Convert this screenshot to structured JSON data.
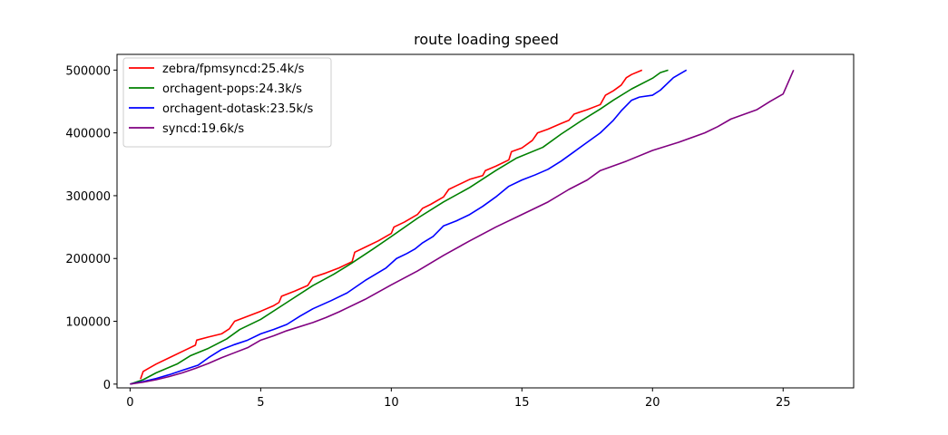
{
  "chart_data": {
    "type": "line",
    "title": "route loading speed",
    "xlabel": "",
    "ylabel": "",
    "xlim": [
      -0.5,
      27.7
    ],
    "ylim": [
      -6000,
      525000
    ],
    "xticks": [
      0,
      5,
      10,
      15,
      20,
      25
    ],
    "yticks": [
      0,
      100000,
      200000,
      300000,
      400000,
      500000
    ],
    "grid": false,
    "legend_position": "top-left",
    "series": [
      {
        "name": "zebra/fpmsyncd:25.4k/s",
        "color": "#ff0000",
        "x": [
          0.4,
          0.5,
          0.7,
          1.0,
          1.5,
          2.0,
          2.5,
          2.55,
          3.0,
          3.5,
          3.8,
          4.0,
          4.5,
          5.0,
          5.5,
          5.7,
          5.8,
          6.3,
          6.8,
          7.0,
          7.5,
          8.0,
          8.5,
          8.6,
          9.0,
          9.5,
          10.0,
          10.1,
          10.5,
          11.0,
          11.2,
          11.5,
          12.0,
          12.2,
          12.5,
          13.0,
          13.5,
          13.6,
          14.0,
          14.5,
          14.6,
          15.0,
          15.4,
          15.6,
          16.0,
          16.5,
          16.8,
          17.0,
          17.5,
          18.0,
          18.2,
          18.5,
          18.8,
          19.0,
          19.2,
          19.6
        ],
        "y": [
          8000,
          20000,
          25000,
          32000,
          42000,
          52000,
          62000,
          70000,
          75000,
          80000,
          88000,
          100000,
          108000,
          116000,
          125000,
          130000,
          140000,
          148000,
          157000,
          170000,
          177000,
          185000,
          195000,
          210000,
          218000,
          228000,
          240000,
          250000,
          258000,
          270000,
          280000,
          286000,
          298000,
          310000,
          316000,
          326000,
          332000,
          340000,
          347000,
          357000,
          370000,
          376000,
          388000,
          400000,
          406000,
          415000,
          420000,
          430000,
          437000,
          445000,
          460000,
          467000,
          476000,
          488000,
          493000,
          500000
        ]
      },
      {
        "name": "orchagent-pops:24.3k/s",
        "color": "#008000",
        "x": [
          0.0,
          0.5,
          1.0,
          1.8,
          2.3,
          3.0,
          3.7,
          4.2,
          5.0,
          6.0,
          7.0,
          7.8,
          8.5,
          9.3,
          10.0,
          11.0,
          12.0,
          13.0,
          14.0,
          14.8,
          15.8,
          16.5,
          17.3,
          18.0,
          18.5,
          19.2,
          20.0,
          20.3,
          20.6
        ],
        "y": [
          0,
          7000,
          18000,
          32000,
          45000,
          57000,
          72000,
          87000,
          103000,
          130000,
          157000,
          175000,
          193000,
          215000,
          235000,
          264000,
          290000,
          313000,
          340000,
          360000,
          377000,
          398000,
          420000,
          438000,
          452000,
          470000,
          487000,
          496000,
          500000
        ]
      },
      {
        "name": "orchagent-dotask:23.5k/s",
        "color": "#0000ff",
        "x": [
          0.0,
          0.5,
          1.0,
          1.5,
          2.0,
          2.6,
          3.0,
          3.5,
          4.0,
          4.5,
          5.0,
          5.5,
          6.0,
          6.5,
          7.0,
          7.7,
          8.3,
          9.0,
          9.8,
          10.2,
          10.6,
          10.9,
          11.2,
          11.6,
          12.0,
          12.5,
          13.0,
          13.5,
          14.0,
          14.5,
          15.0,
          15.5,
          16.0,
          16.5,
          17.0,
          17.5,
          18.0,
          18.5,
          18.8,
          19.2,
          19.5,
          20.0,
          20.3,
          20.8,
          21.3
        ],
        "y": [
          0,
          4000,
          9000,
          15000,
          22000,
          30000,
          42000,
          55000,
          63000,
          70000,
          80000,
          87000,
          95000,
          108000,
          120000,
          133000,
          145000,
          165000,
          185000,
          200000,
          208000,
          215000,
          225000,
          235000,
          252000,
          260000,
          270000,
          283000,
          298000,
          315000,
          325000,
          333000,
          342000,
          355000,
          370000,
          385000,
          400000,
          420000,
          435000,
          452000,
          457000,
          460000,
          468000,
          488000,
          500000
        ]
      },
      {
        "name": "syncd:19.6k/s",
        "color": "#800080",
        "x": [
          0.0,
          0.5,
          1.0,
          1.5,
          2.0,
          2.5,
          3.0,
          3.5,
          4.0,
          4.5,
          5.0,
          5.5,
          6.0,
          7.0,
          7.5,
          8.0,
          9.0,
          10.0,
          11.0,
          12.0,
          13.0,
          14.0,
          15.0,
          16.0,
          16.8,
          17.5,
          18.0,
          19.0,
          20.0,
          21.0,
          22.0,
          22.5,
          23.0,
          24.0,
          24.5,
          25.0,
          25.4
        ],
        "y": [
          0,
          3000,
          7000,
          12000,
          18000,
          25000,
          33000,
          42000,
          50000,
          58000,
          70000,
          77000,
          85000,
          98000,
          106000,
          115000,
          135000,
          158000,
          180000,
          205000,
          228000,
          250000,
          270000,
          290000,
          310000,
          325000,
          340000,
          355000,
          372000,
          385000,
          400000,
          410000,
          422000,
          437000,
          450000,
          462000,
          500000
        ]
      }
    ]
  }
}
